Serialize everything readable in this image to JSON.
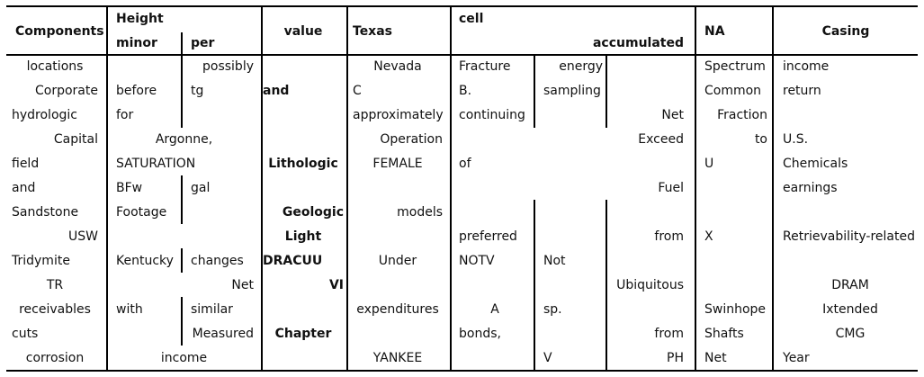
{
  "header": {
    "components": "Components",
    "height": "Height",
    "minor": "minor",
    "per": "per",
    "value": "value",
    "texas": "Texas",
    "cell": "cell",
    "accumulated": "accumulated",
    "na": "NA",
    "casing": "Casing"
  },
  "rows": [
    {
      "c1": "locations",
      "c2": "",
      "c3": "possibly",
      "c4": "",
      "c5": "Nevada",
      "c6": "Fracture",
      "c7": "energy",
      "c8": "",
      "c9": "Spectrum",
      "c10": "income"
    },
    {
      "c1": "Corporate",
      "c2": "before",
      "c3": "tg",
      "c4": "and",
      "c5": "C",
      "c6": "B.",
      "c7": "sampling",
      "c8": "",
      "c9": "Common",
      "c10": "return"
    },
    {
      "c1": "hydrologic",
      "c2": "for",
      "c3": "",
      "c4": "",
      "c5": "approximately",
      "c6": "continuing",
      "c7": "",
      "c8": "Net",
      "c9": "Fraction",
      "c10": ""
    },
    {
      "c1": "Capital",
      "c23": "Argonne,",
      "c4": "",
      "c5": "Operation",
      "c678": "Exceed",
      "c9": "to",
      "c10": "U.S."
    },
    {
      "c1": "field",
      "c2": "SATURATION",
      "c3": "",
      "c4": "Lithologic",
      "c5": "FEMALE",
      "c6": "of",
      "c7": "",
      "c8": "",
      "c9": "U",
      "c10": "Chemicals"
    },
    {
      "c1": "and",
      "c2": "BFw",
      "c3": "gal",
      "c4": "",
      "c5": "",
      "c678": "Fuel",
      "c9": "",
      "c10": "earnings"
    },
    {
      "c1": "Sandstone",
      "c2": "Footage",
      "c3": "",
      "c4": "Geologic",
      "c5": "models",
      "c6": "",
      "c7": "",
      "c8": "",
      "c9": "",
      "c10": ""
    },
    {
      "c1": "USW",
      "c2": "",
      "c3": "",
      "c4": "Light",
      "c5": "",
      "c6": "preferred",
      "c7": "",
      "c8": "from",
      "c9": "X",
      "c10": "Retrievability-related"
    },
    {
      "c1": "Tridymite",
      "c2": "Kentucky",
      "c3": "changes",
      "c4": "DRACUU",
      "c5": "Under",
      "c6": "NOTV",
      "c7": "Not",
      "c8": "",
      "c9": "",
      "c10": ""
    },
    {
      "c1": "TR",
      "c2": "",
      "c3": "Net",
      "c4": "VI",
      "c5": "",
      "c6": "",
      "c7": "",
      "c8": "Ubiquitous",
      "c9": "",
      "c10": "DRAM"
    },
    {
      "c1": "receivables",
      "c2": "with",
      "c3": "similar",
      "c4": "",
      "c5": "expenditures",
      "c6": "A",
      "c7": "sp.",
      "c8": "",
      "c9": "Swinhope",
      "c10": "Ixtended"
    },
    {
      "c1": "cuts",
      "c2": "",
      "c3": "Measured",
      "c4": "Chapter",
      "c5": "",
      "c6": "bonds,",
      "c7": "",
      "c8": "from",
      "c9": "Shafts",
      "c10": "CMG"
    },
    {
      "c1": "corrosion",
      "c23": "income",
      "c4": "",
      "c5": "YANKEE",
      "c6": "",
      "c7": "V",
      "c8": "PH",
      "c9": "Net",
      "c10": "Year"
    }
  ]
}
